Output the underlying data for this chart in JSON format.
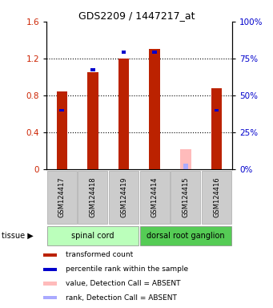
{
  "title": "GDS2209 / 1447217_at",
  "samples": [
    "GSM124417",
    "GSM124418",
    "GSM124419",
    "GSM124414",
    "GSM124415",
    "GSM124416"
  ],
  "red_values": [
    0.84,
    1.05,
    1.2,
    1.3,
    0.0,
    0.88
  ],
  "blue_values": [
    0.64,
    1.08,
    1.27,
    1.27,
    null,
    0.64
  ],
  "absent_red": [
    0.0,
    0.0,
    0.0,
    0.0,
    0.22,
    0.0
  ],
  "absent_blue_val": [
    0.0,
    0.0,
    0.0,
    0.0,
    0.06,
    0.0
  ],
  "groups": [
    {
      "label": "spinal cord",
      "samples": [
        0,
        1,
        2
      ],
      "color": "#bbffbb"
    },
    {
      "label": "dorsal root ganglion",
      "samples": [
        3,
        4,
        5
      ],
      "color": "#55cc55"
    }
  ],
  "ylim_left": [
    0,
    1.6
  ],
  "ylim_right": [
    0,
    100
  ],
  "yticks_left": [
    0,
    0.4,
    0.8,
    1.2,
    1.6
  ],
  "yticks_right": [
    0,
    25,
    50,
    75,
    100
  ],
  "left_color": "#cc2200",
  "right_color": "#0000cc",
  "background_color": "#ffffff",
  "bar_color": "#bb2200",
  "blue_color": "#0000cc",
  "absent_red_color": "#ffbbbb",
  "absent_blue_color": "#aaaaff",
  "legend_items": [
    {
      "label": "transformed count",
      "color": "#bb2200"
    },
    {
      "label": "percentile rank within the sample",
      "color": "#0000cc"
    },
    {
      "label": "value, Detection Call = ABSENT",
      "color": "#ffbbbb"
    },
    {
      "label": "rank, Detection Call = ABSENT",
      "color": "#aaaaff"
    }
  ]
}
